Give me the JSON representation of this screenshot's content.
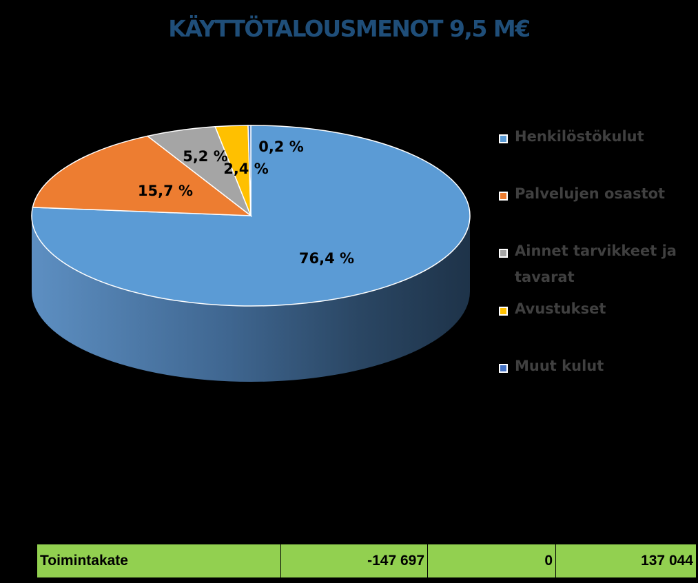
{
  "chart_data": {
    "type": "pie",
    "title": "KÄYTTÖTALOUSMENOT 9,5 M€",
    "slices": [
      {
        "name": "Henkilöstökulut",
        "value": 76.4,
        "label": "76,4 %",
        "color": "#5b9bd5"
      },
      {
        "name": "Palvelujen osastot",
        "value": 15.7,
        "label": "15,7 %",
        "color": "#ed7d31"
      },
      {
        "name": "Ainnet tarvikkeet ja tavarat",
        "value": 5.2,
        "label": "5,2 %",
        "color": "#a5a5a5"
      },
      {
        "name": "Avustukset",
        "value": 2.4,
        "label": "2,4 %",
        "color": "#ffc000"
      },
      {
        "name": "Muut kulut",
        "value": 0.2,
        "label": "0,2 %",
        "color": "#4472c4"
      }
    ],
    "legend_position": "right",
    "style": "3d"
  },
  "table": {
    "row_label": "Toimintakate",
    "values": [
      "-147 697",
      "0",
      "137 044"
    ]
  },
  "colors": {
    "background": "#000000",
    "title": "#1f4e79",
    "table_fill": "#92d050"
  }
}
